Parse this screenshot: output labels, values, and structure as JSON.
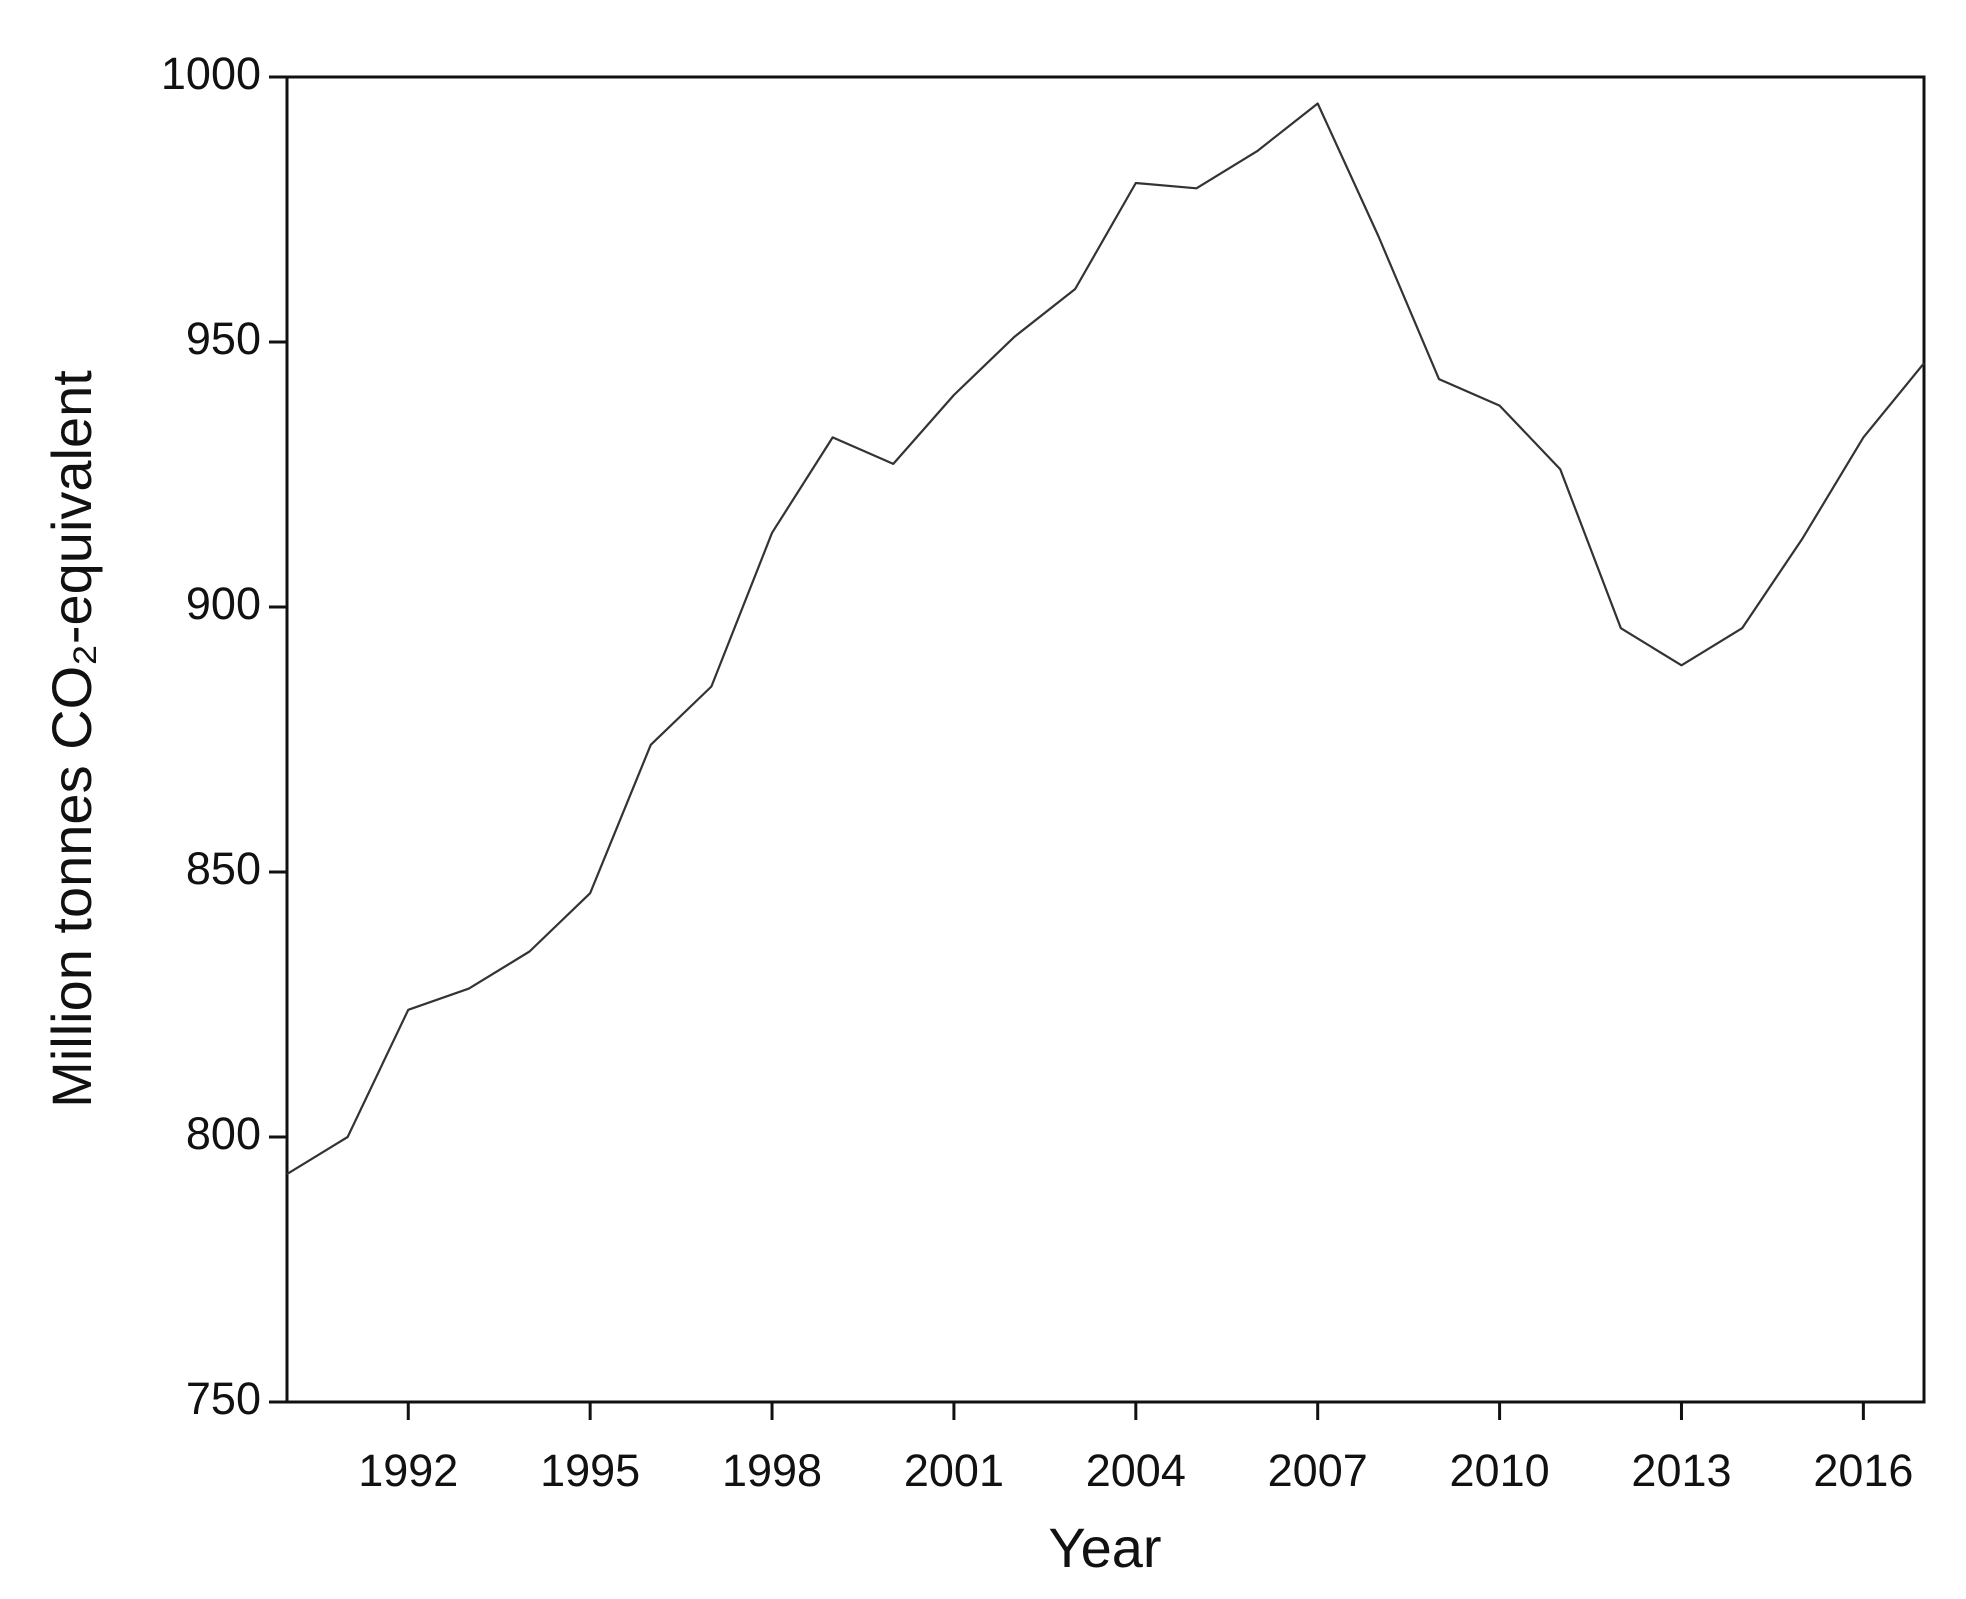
{
  "chart_data": {
    "type": "line",
    "x_label": "Year",
    "y_label": "Million tonnes CO₂-equivalent",
    "x": [
      1990,
      1991,
      1992,
      1993,
      1994,
      1995,
      1996,
      1997,
      1998,
      1999,
      2000,
      2001,
      2002,
      2003,
      2004,
      2005,
      2006,
      2007,
      2008,
      2009,
      2010,
      2011,
      2012,
      2013,
      2014,
      2015,
      2016,
      2017
    ],
    "values": [
      793,
      800,
      824,
      828,
      835,
      846,
      874,
      885,
      914,
      932,
      927,
      940,
      951,
      960,
      980,
      979,
      986,
      995,
      970,
      943,
      938,
      926,
      896,
      889,
      896,
      913,
      932,
      946
    ],
    "color": "#333333",
    "xlim": [
      1990,
      2017
    ],
    "xticks": [
      1992,
      1995,
      1998,
      2001,
      2004,
      2007,
      2010,
      2013,
      2016
    ],
    "ylim": [
      750,
      1000
    ],
    "yticks": [
      750,
      800,
      850,
      900,
      950,
      1000
    ],
    "grid": false
  }
}
